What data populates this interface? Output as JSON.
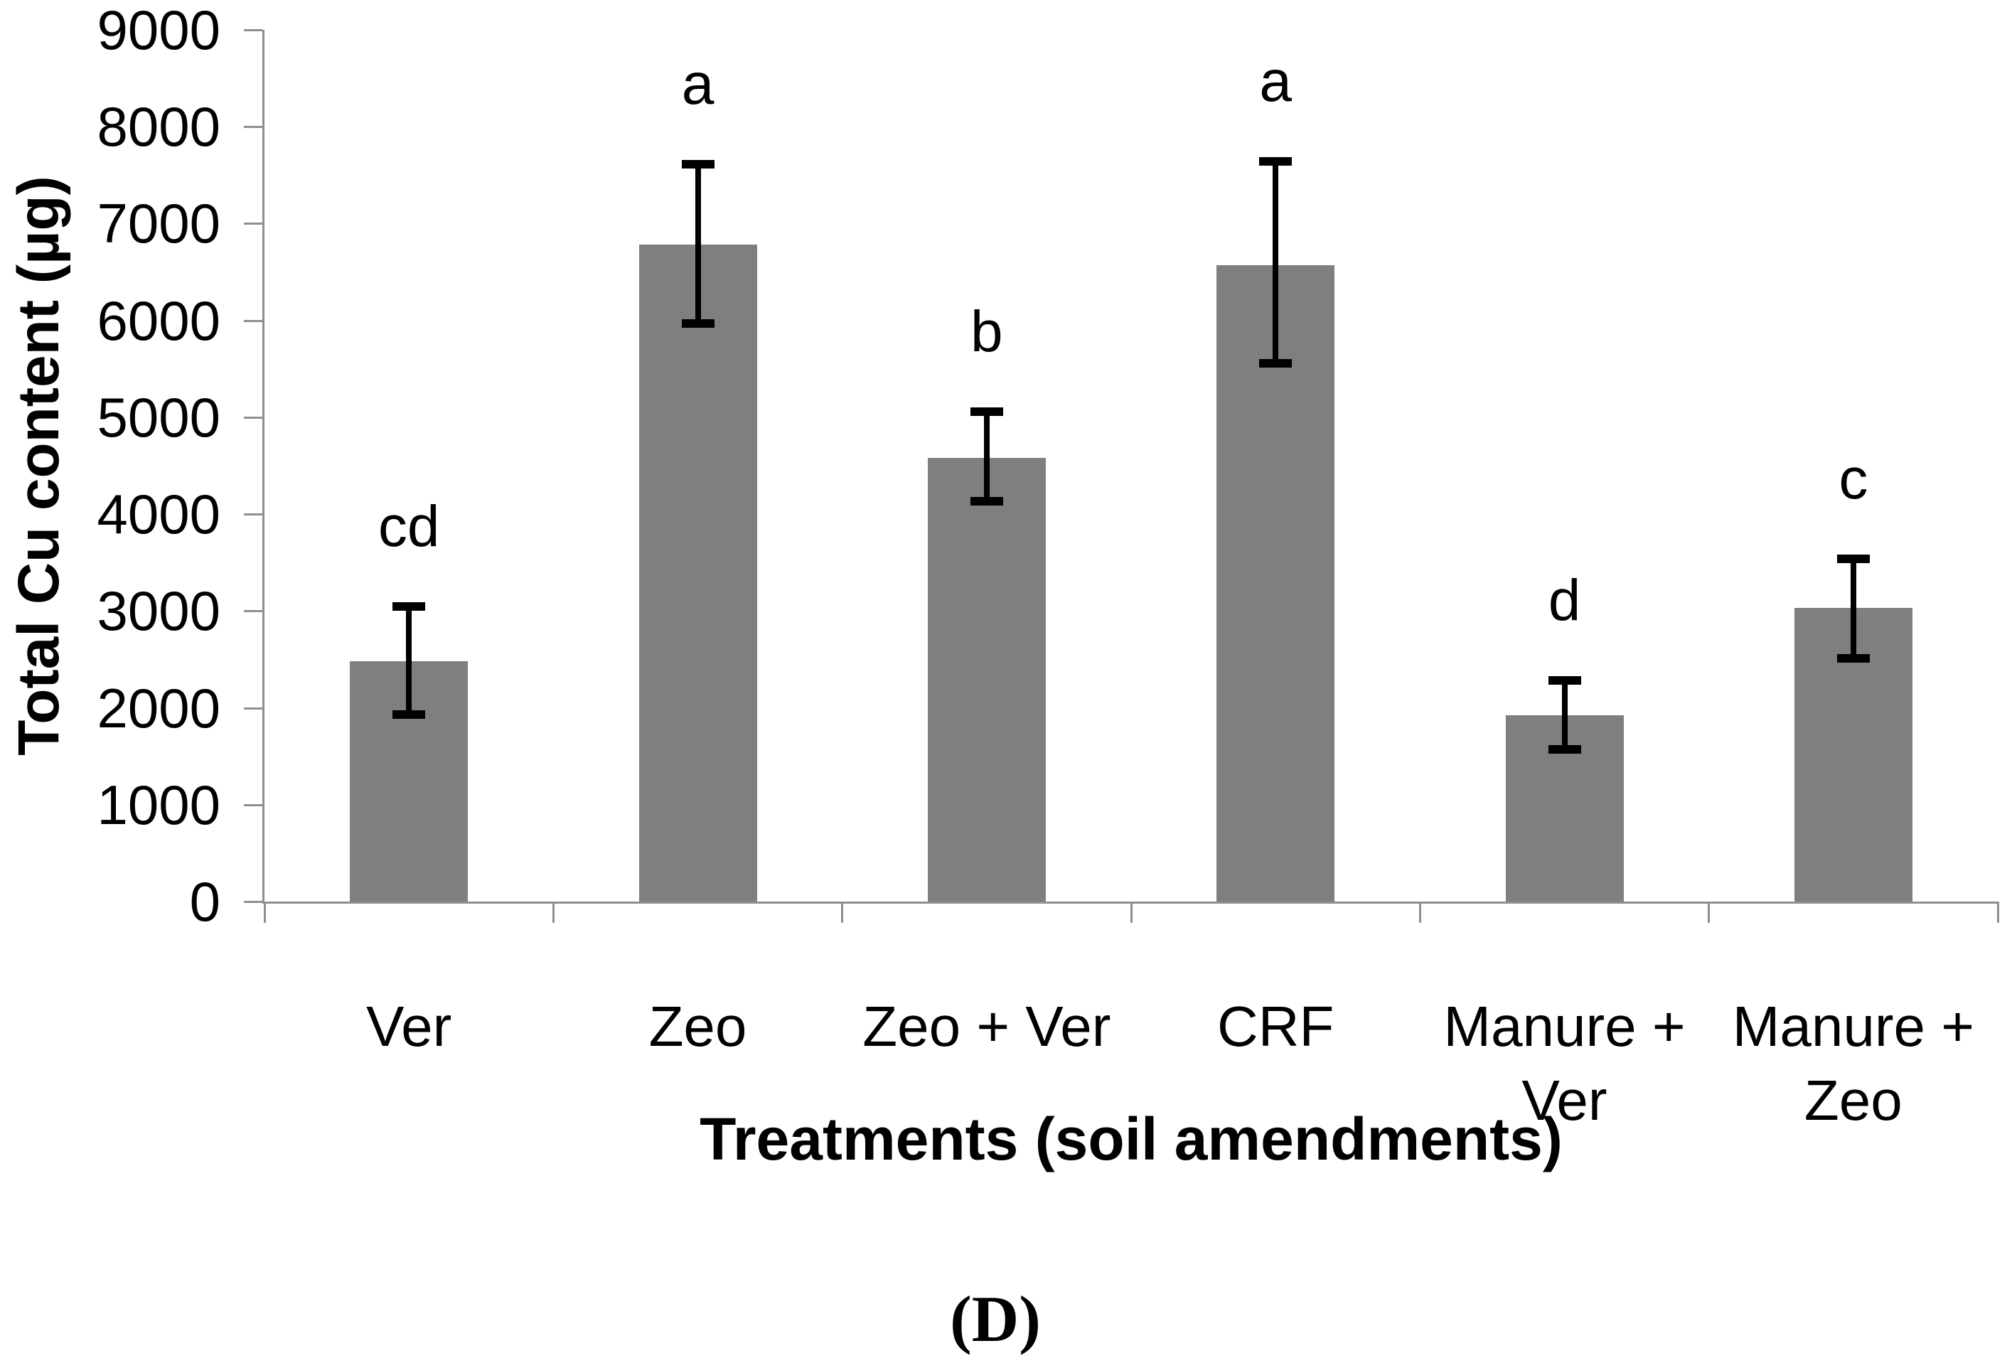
{
  "figure": {
    "caption": "(D)"
  },
  "chart_data": {
    "type": "bar",
    "title": "",
    "xlabel": "Treatments (soil amendments)",
    "ylabel": "Total Cu content (µg)",
    "ylim": [
      0,
      9000
    ],
    "ytick_step": 1000,
    "yticks": [
      0,
      1000,
      2000,
      3000,
      4000,
      5000,
      6000,
      7000,
      8000,
      9000
    ],
    "grid": false,
    "legend": false,
    "categories": [
      "Ver",
      "Zeo",
      "Zeo + Ver",
      "CRF",
      "Manure + Ver",
      "Manure + Zeo"
    ],
    "category_label_lines": [
      [
        "Ver"
      ],
      [
        "Zeo"
      ],
      [
        "Zeo + Ver"
      ],
      [
        "CRF"
      ],
      [
        "Manure +",
        "Ver"
      ],
      [
        "Manure +",
        "Zeo"
      ]
    ],
    "values": [
      2480,
      6780,
      4580,
      6570,
      1920,
      3030
    ],
    "error_upper": [
      3050,
      7610,
      5060,
      7640,
      2280,
      3540
    ],
    "error_lower": [
      1930,
      5970,
      4130,
      5560,
      1570,
      2510
    ],
    "sig_letters": [
      "cd",
      "a",
      "b",
      "a",
      "d",
      "c"
    ],
    "bar_color": "#7f7f7f",
    "axis_color": "#8f8f8f",
    "error_bar_color": "#000000"
  }
}
